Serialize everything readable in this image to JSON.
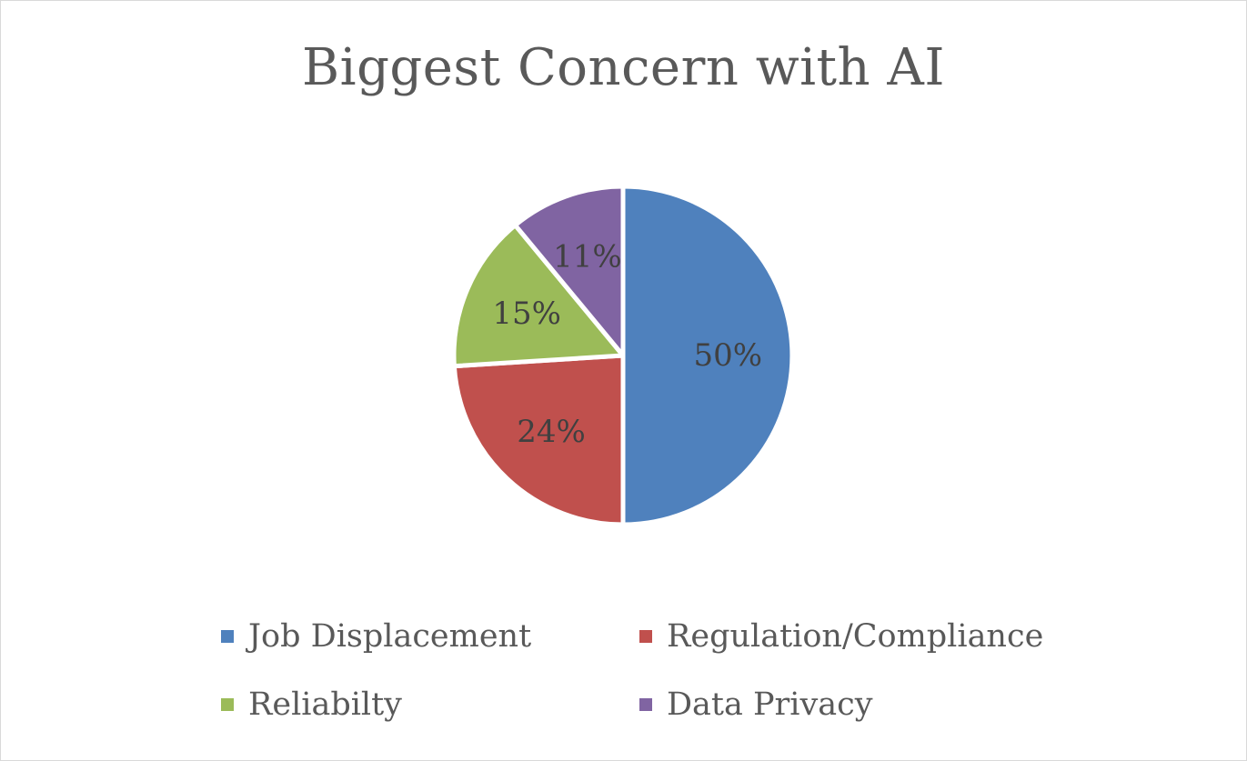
{
  "chart_data": {
    "type": "pie",
    "title": "Biggest Concern with AI",
    "slices": [
      {
        "label": "Job Displacement",
        "value": 50,
        "display": "50%",
        "color": "#4f81bd"
      },
      {
        "label": "Regulation/Compliance",
        "value": 24,
        "display": "24%",
        "color": "#c0504d"
      },
      {
        "label": "Reliabilty",
        "value": 15,
        "display": "15%",
        "color": "#9bbb59"
      },
      {
        "label": "Data Privacy",
        "value": 11,
        "display": "11%",
        "color": "#8064a2"
      }
    ],
    "legend_position": "bottom"
  }
}
